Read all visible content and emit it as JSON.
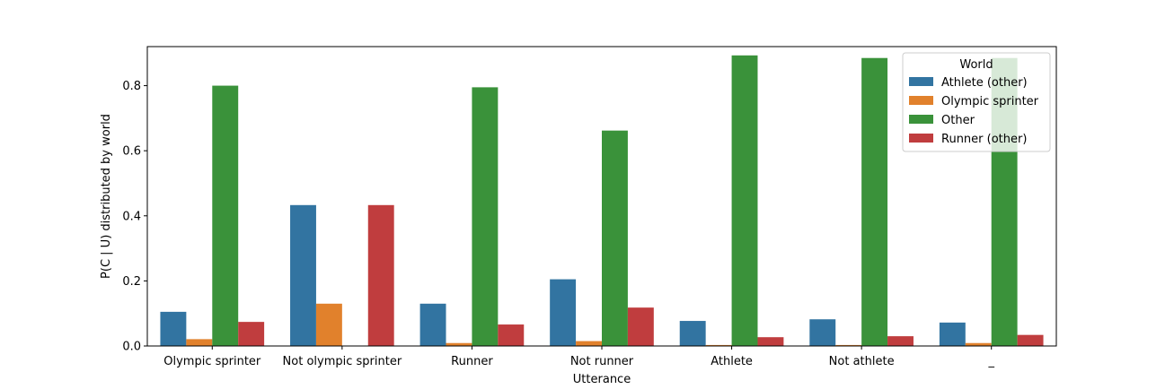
{
  "chart_data": {
    "type": "bar",
    "xlabel": "Utterance",
    "ylabel": "P(C | U) distributed by world",
    "ylim": [
      0,
      0.92
    ],
    "yticks": [
      0.0,
      0.2,
      0.4,
      0.6,
      0.8
    ],
    "ytick_labels": [
      "0.0",
      "0.2",
      "0.4",
      "0.6",
      "0.8"
    ],
    "grid": false,
    "legend": {
      "title": "World",
      "placement": "top-right"
    },
    "categories": [
      "Olympic sprinter",
      "Not olympic sprinter",
      "Runner",
      "Not runner",
      "Athlete",
      "Not athlete",
      "_"
    ],
    "series": [
      {
        "name": "Athlete (other)",
        "color": "#3274a1",
        "values": [
          0.105,
          0.433,
          0.13,
          0.205,
          0.077,
          0.082,
          0.072
        ]
      },
      {
        "name": "Olympic sprinter",
        "color": "#e1812c",
        "values": [
          0.021,
          0.13,
          0.009,
          0.015,
          0.003,
          0.003,
          0.009
        ]
      },
      {
        "name": "Other",
        "color": "#3a923a",
        "values": [
          0.8,
          0.0,
          0.795,
          0.662,
          0.893,
          0.885,
          0.885
        ]
      },
      {
        "name": "Runner (other)",
        "color": "#c03d3e",
        "values": [
          0.074,
          0.433,
          0.066,
          0.118,
          0.027,
          0.03,
          0.034
        ]
      }
    ]
  }
}
